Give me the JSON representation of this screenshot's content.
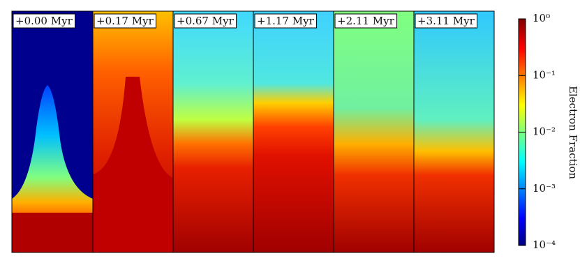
{
  "panels": [
    {
      "label": "+0.00 Myr"
    },
    {
      "label": "+0.17 Myr"
    },
    {
      "label": "+0.67 Myr"
    },
    {
      "label": "+1.17 Myr"
    },
    {
      "label": "+2.11 Myr"
    },
    {
      "label": "+3.11 Myr"
    }
  ],
  "colorbar": {
    "label": "Electron Fraction",
    "scale": "log",
    "lim": [
      0.0001,
      1
    ],
    "ticks": [
      {
        "value": 0.0001,
        "label": "10⁻⁴"
      },
      {
        "value": 0.001,
        "label": "10⁻³"
      },
      {
        "value": 0.01,
        "label": "10⁻²"
      },
      {
        "value": 0.1,
        "label": "10⁻¹"
      },
      {
        "value": 1,
        "label": "10⁰"
      }
    ]
  }
}
